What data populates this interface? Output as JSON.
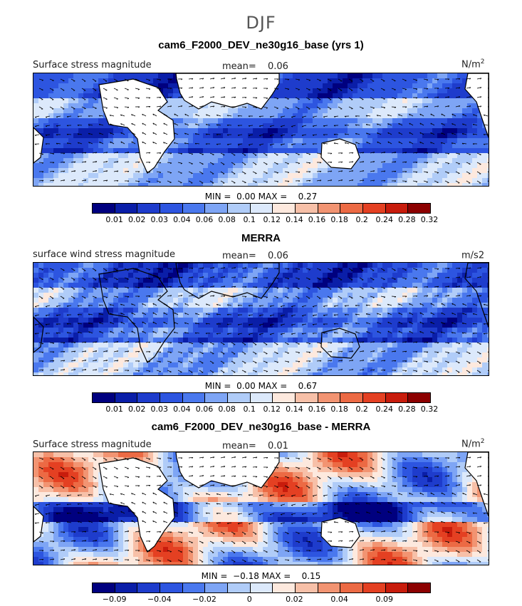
{
  "season": "DJF",
  "panels": [
    {
      "title": "cam6_F2000_DEV_ne30g16_base (yrs 1)",
      "left_label": "Surface stress magnitude",
      "mean_label": "mean=",
      "mean_value": "0.06",
      "units": "N/m",
      "units_sup": "2",
      "minmax": {
        "min_label": "MIN =",
        "min": "0.00",
        "max_label": "MAX =",
        "max": "0.27"
      },
      "colorbar": {
        "colors": [
          "#00007f",
          "#0a1ea8",
          "#1e3ccc",
          "#2d55e0",
          "#4a78ee",
          "#7ea5f5",
          "#b0ccf8",
          "#dce9fb",
          "#fde9de",
          "#f7c0a8",
          "#f29472",
          "#ec6a44",
          "#e44022",
          "#c81c0c",
          "#8c0000"
        ],
        "labels": [
          "0.01",
          "0.02",
          "0.03",
          "0.04",
          "0.06",
          "0.08",
          "0.1",
          "0.12",
          "0.14",
          "0.16",
          "0.18",
          "0.2",
          "0.24",
          "0.28",
          "0.32"
        ]
      }
    },
    {
      "title": "MERRA",
      "left_label": "surface wind stress magnitude",
      "mean_label": "mean=",
      "mean_value": "0.06",
      "units": "m/s2",
      "units_sup": "",
      "minmax": {
        "min_label": "MIN =",
        "min": "0.00",
        "max_label": "MAX =",
        "max": "0.67"
      },
      "colorbar": {
        "colors": [
          "#00007f",
          "#0a1ea8",
          "#1e3ccc",
          "#2d55e0",
          "#4a78ee",
          "#7ea5f5",
          "#b0ccf8",
          "#dce9fb",
          "#fde9de",
          "#f7c0a8",
          "#f29472",
          "#ec6a44",
          "#e44022",
          "#c81c0c",
          "#8c0000"
        ],
        "labels": [
          "0.01",
          "0.02",
          "0.03",
          "0.04",
          "0.06",
          "0.08",
          "0.1",
          "0.12",
          "0.14",
          "0.16",
          "0.18",
          "0.2",
          "0.24",
          "0.28",
          "0.32"
        ]
      }
    },
    {
      "title": "cam6_F2000_DEV_ne30g16_base - MERRA",
      "left_label": "Surface stress magnitude",
      "mean_label": "mean=",
      "mean_value": "0.01",
      "units": "N/m",
      "units_sup": "2",
      "minmax": {
        "min_label": "MIN =",
        "min": "−0.18",
        "max_label": "MAX =",
        "max": "0.15"
      },
      "colorbar": {
        "colors": [
          "#00007f",
          "#0a1ea8",
          "#1e3ccc",
          "#2d55e0",
          "#4a78ee",
          "#7ea5f5",
          "#b0ccf8",
          "#dce9fb",
          "#fde9de",
          "#f7c0a8",
          "#f29472",
          "#ec6a44",
          "#e44022",
          "#c81c0c",
          "#8c0000"
        ],
        "labels": [
          "−0.09",
          "",
          "−0.04",
          "",
          "−0.02",
          "",
          "0",
          "",
          "0.02",
          "",
          "0.04",
          "",
          "0.09",
          "",
          ""
        ]
      }
    }
  ]
}
